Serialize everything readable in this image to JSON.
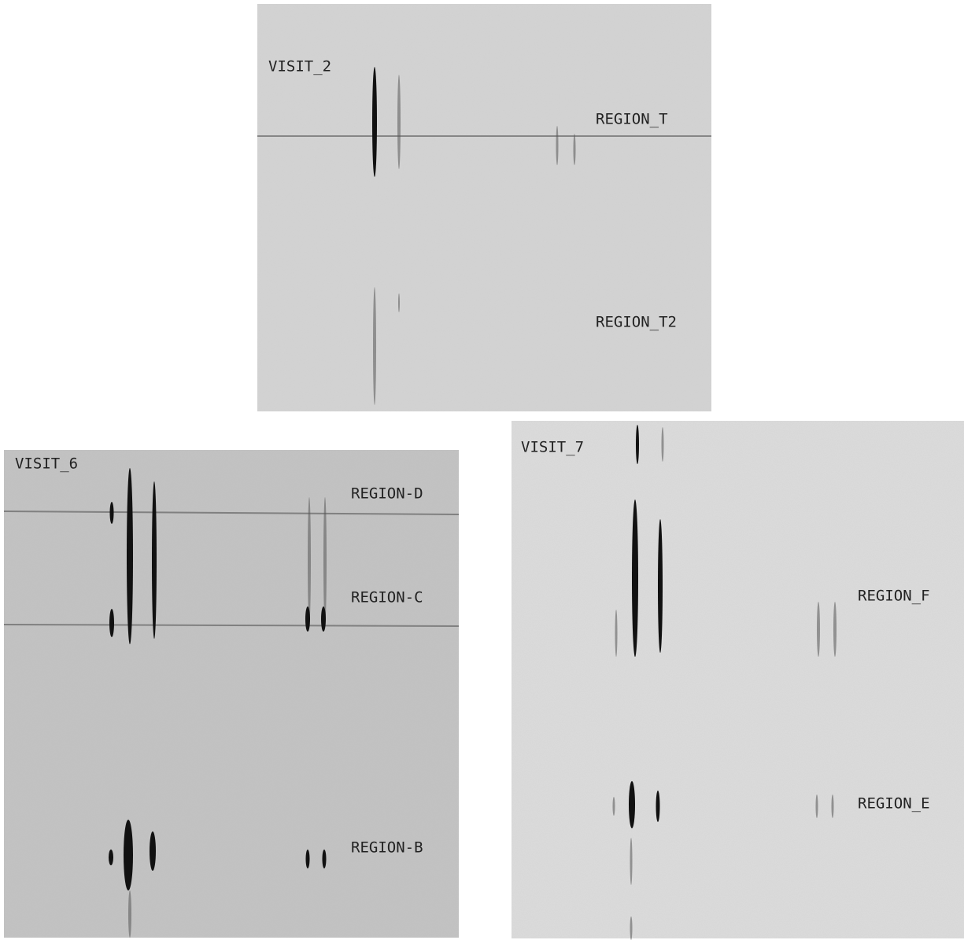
{
  "panels": [
    {
      "label": "VISIT_2",
      "regions": [
        "REGION_T",
        "REGION_T2"
      ]
    },
    {
      "label": "VISIT_6",
      "regions": [
        "REGION-D",
        "REGION-C",
        "REGION-B"
      ]
    },
    {
      "label": "VISIT_7",
      "regions": [
        "REGION_F",
        "REGION_E"
      ]
    }
  ]
}
